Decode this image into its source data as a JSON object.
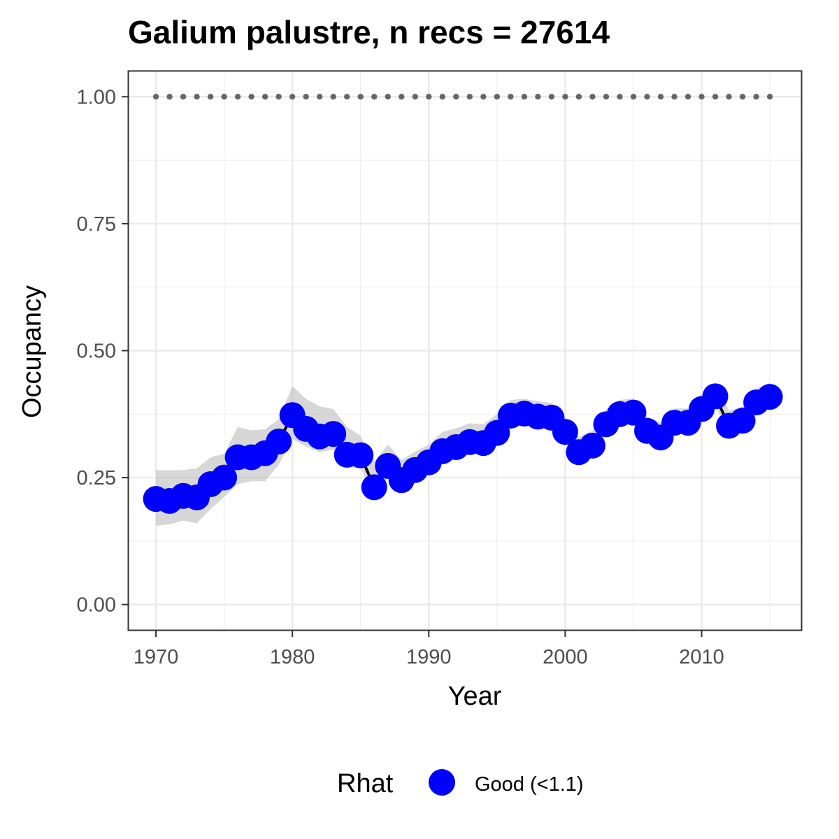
{
  "chart_data": {
    "type": "line",
    "title": "Galium palustre, n recs = 27614",
    "xlabel": "Year",
    "ylabel": "Occupancy",
    "xlim": [
      1968.0,
      2017.3
    ],
    "ylim": [
      -0.05,
      1.05
    ],
    "x_ticks": [
      1970,
      1980,
      1990,
      2000,
      2010
    ],
    "x_tick_labels": [
      "1970",
      "1980",
      "1990",
      "2000",
      "2010"
    ],
    "y_ticks": [
      0.0,
      0.25,
      0.5,
      0.75,
      1.0
    ],
    "y_tick_labels": [
      "0.00",
      "0.25",
      "0.50",
      "0.75",
      "1.00"
    ],
    "grid": true,
    "legend": {
      "title": "Rhat",
      "entries": [
        {
          "label": "Good (<1.1)",
          "color": "#0000ff"
        }
      ],
      "placement": "bottom"
    },
    "colors": {
      "points": "#0000ff",
      "line": "#000000",
      "ribbon": "#bdbdbd",
      "reference": "#666666"
    },
    "series": [
      {
        "x": [
          1970,
          1971,
          1972,
          1973,
          1974,
          1975,
          1976,
          1977,
          1978,
          1979,
          1980,
          1981,
          1982,
          1983,
          1984,
          1985,
          1986,
          1987,
          1988,
          1989,
          1990,
          1991,
          1992,
          1993,
          1994,
          1995,
          1996,
          1997,
          1998,
          1999,
          2000,
          2001,
          2002,
          2003,
          2004,
          2005,
          2006,
          2007,
          2008,
          2009,
          2010,
          2011,
          2012,
          2013,
          2014,
          2015
        ],
        "values": [
          0.208,
          0.204,
          0.214,
          0.211,
          0.237,
          0.25,
          0.29,
          0.29,
          0.298,
          0.321,
          0.373,
          0.346,
          0.331,
          0.336,
          0.295,
          0.294,
          0.231,
          0.273,
          0.245,
          0.265,
          0.28,
          0.302,
          0.31,
          0.32,
          0.318,
          0.338,
          0.372,
          0.376,
          0.37,
          0.368,
          0.34,
          0.3,
          0.313,
          0.355,
          0.375,
          0.378,
          0.342,
          0.329,
          0.358,
          0.358,
          0.385,
          0.41,
          0.352,
          0.362,
          0.398,
          0.409
        ],
        "lower": [
          0.155,
          0.158,
          0.165,
          0.16,
          0.188,
          0.212,
          0.237,
          0.243,
          0.243,
          0.275,
          0.326,
          0.311,
          0.3,
          0.305,
          0.27,
          0.269,
          0.211,
          0.248,
          0.224,
          0.243,
          0.258,
          0.28,
          0.288,
          0.298,
          0.297,
          0.318,
          0.352,
          0.358,
          0.352,
          0.35,
          0.321,
          0.283,
          0.296,
          0.337,
          0.357,
          0.36,
          0.325,
          0.312,
          0.34,
          0.34,
          0.367,
          0.392,
          0.335,
          0.345,
          0.381,
          0.392
        ],
        "upper": [
          0.265,
          0.264,
          0.265,
          0.268,
          0.29,
          0.297,
          0.35,
          0.343,
          0.345,
          0.365,
          0.43,
          0.405,
          0.39,
          0.385,
          0.35,
          0.332,
          0.281,
          0.315,
          0.285,
          0.301,
          0.315,
          0.34,
          0.347,
          0.357,
          0.355,
          0.375,
          0.403,
          0.405,
          0.4,
          0.397,
          0.369,
          0.33,
          0.342,
          0.385,
          0.403,
          0.406,
          0.37,
          0.358,
          0.386,
          0.386,
          0.413,
          0.437,
          0.382,
          0.39,
          0.425,
          0.437
        ]
      }
    ],
    "reference_line": {
      "y": 1.0,
      "x_from": 1970,
      "x_to": 2015,
      "style": "dotted"
    }
  }
}
